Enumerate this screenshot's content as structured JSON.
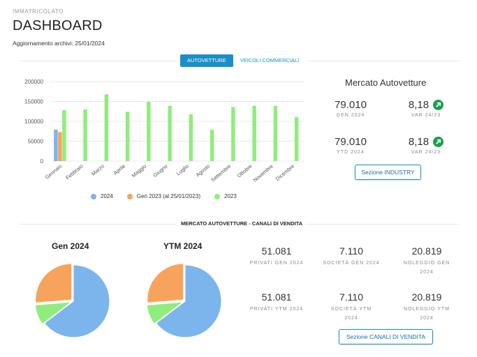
{
  "header": {
    "kicker": "IMMATRICOLATO",
    "title": "DASHBOARD",
    "updated": "Aggiornamento archivi: 25/01/2024"
  },
  "tabs": [
    {
      "label": "AUTOVETTURE",
      "active": true
    },
    {
      "label": "VEICOLI COMMERCIALI",
      "active": false
    }
  ],
  "chart_data": {
    "type": "bar",
    "categories": [
      "Gennaio",
      "Febbraio",
      "Marzo",
      "Aprile",
      "Maggio",
      "Giugno",
      "Luglio",
      "Agosto",
      "Settembre",
      "Ottobre",
      "Novembre",
      "Dicembre"
    ],
    "series": [
      {
        "name": "2024",
        "color": "#7cb5ec",
        "values": [
          79010,
          null,
          null,
          null,
          null,
          null,
          null,
          null,
          null,
          null,
          null,
          null
        ]
      },
      {
        "name": "Gen 2023 (al 25/01/2023)",
        "color": "#f7a35c",
        "values": [
          73000,
          null,
          null,
          null,
          null,
          null,
          null,
          null,
          null,
          null,
          null,
          null
        ]
      },
      {
        "name": "2023",
        "color": "#90ed7d",
        "values": [
          128000,
          130000,
          168000,
          124000,
          149000,
          139000,
          118000,
          79000,
          136000,
          139000,
          139000,
          111000
        ]
      }
    ],
    "yticks": [
      0,
      50000,
      100000,
      150000,
      200000
    ],
    "ylim": [
      0,
      200000
    ],
    "legend_position": "bottom",
    "grid": true
  },
  "market": {
    "title": "Mercato Autovetture",
    "rows": [
      {
        "value": "79.010",
        "label": "GEN 2024",
        "var_value": "8,18",
        "var_label": "VAR 24/23",
        "icon": "arrow-up-right-icon"
      },
      {
        "value": "79.010",
        "label": "YTD 2024",
        "var_value": "8,18",
        "var_label": "VAR 24/23",
        "icon": "arrow-up-right-icon"
      }
    ],
    "button": "Sezione INDUSTRY"
  },
  "channels": {
    "title": "MERCATO AUTOVETTURE - CANALI DI VENDITA",
    "pies": [
      {
        "title": "Gen 2024",
        "slices": [
          {
            "name": "Privati",
            "value": 51081,
            "color": "#7cb5ec"
          },
          {
            "name": "Società",
            "value": 7110,
            "color": "#90ed7d"
          },
          {
            "name": "Noleggio",
            "value": 20819,
            "color": "#f7a35c"
          }
        ]
      },
      {
        "title": "YTM 2024",
        "slices": [
          {
            "name": "Privati",
            "value": 51081,
            "color": "#7cb5ec"
          },
          {
            "name": "Società",
            "value": 7110,
            "color": "#90ed7d"
          },
          {
            "name": "Noleggio",
            "value": 20819,
            "color": "#f7a35c"
          }
        ]
      }
    ],
    "stats": [
      {
        "value": "51.081",
        "label": "PRIVATI GEN 2024"
      },
      {
        "value": "7.110",
        "label": "SOCIETÀ GEN 2024"
      },
      {
        "value": "20.819",
        "label": "NOLEGGIO GEN 2024"
      },
      {
        "value": "51.081",
        "label": "PRIVATI YTM 2024"
      },
      {
        "value": "7.110",
        "label": "SOCIETÀ YTM 2024"
      },
      {
        "value": "20.819",
        "label": "NOLEGGIO YTM 2024"
      }
    ],
    "button": "Sezione CANALI DI VENDITA"
  }
}
